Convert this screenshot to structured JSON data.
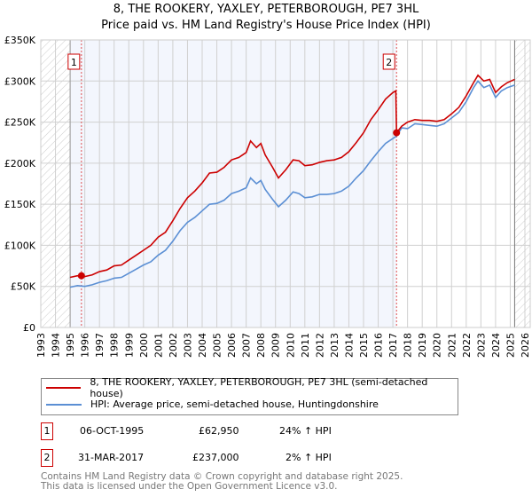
{
  "title": {
    "line1": "8, THE ROOKERY, YAXLEY, PETERBOROUGH, PE7 3HL",
    "line2": "Price paid vs. HM Land Registry's House Price Index (HPI)"
  },
  "chart_data": {
    "type": "line",
    "xlim": [
      1993,
      2026
    ],
    "ylim": [
      0,
      350000
    ],
    "yticks": [
      {
        "v": 0,
        "label": "£0"
      },
      {
        "v": 50000,
        "label": "£50K"
      },
      {
        "v": 100000,
        "label": "£100K"
      },
      {
        "v": 150000,
        "label": "£150K"
      },
      {
        "v": 200000,
        "label": "£200K"
      },
      {
        "v": 250000,
        "label": "£250K"
      },
      {
        "v": 300000,
        "label": "£300K"
      },
      {
        "v": 350000,
        "label": "£350K"
      }
    ],
    "xticks": [
      "1993",
      "1994",
      "1995",
      "1996",
      "1997",
      "1998",
      "1999",
      "2000",
      "2001",
      "2002",
      "2003",
      "2004",
      "2005",
      "2006",
      "2007",
      "2008",
      "2009",
      "2010",
      "2011",
      "2012",
      "2013",
      "2014",
      "2015",
      "2016",
      "2017",
      "2018",
      "2019",
      "2020",
      "2021",
      "2022",
      "2023",
      "2024",
      "2025",
      "2026"
    ],
    "series": [
      {
        "name": "8, THE ROOKERY, YAXLEY, PETERBOROUGH, PE7 3HL (semi-detached house)",
        "color": "#cc0000",
        "x": [
          1995,
          1995.5,
          1996,
          1996.5,
          1997,
          1997.5,
          1998,
          1998.5,
          1999,
          1999.5,
          2000,
          2000.5,
          2001,
          2001.5,
          2002,
          2002.5,
          2003,
          2003.5,
          2004,
          2004.5,
          2005,
          2005.5,
          2006,
          2006.5,
          2007,
          2007.3,
          2007.7,
          2008,
          2008.3,
          2008.8,
          2009.2,
          2009.7,
          2010.2,
          2010.6,
          2011,
          2011.5,
          2012,
          2012.5,
          2013,
          2013.5,
          2014,
          2014.5,
          2015,
          2015.5,
          2016,
          2016.5,
          2017,
          2017.2,
          2017.25,
          2017.6,
          2018,
          2018.5,
          2019,
          2019.5,
          2020,
          2020.5,
          2021,
          2021.5,
          2022,
          2022.5,
          2022.8,
          2023.2,
          2023.6,
          2024,
          2024.4,
          2024.8,
          2025.3
        ],
        "y": [
          61000,
          63000,
          62000,
          64000,
          68000,
          70000,
          75000,
          76000,
          82000,
          88000,
          94000,
          100000,
          110000,
          116000,
          130000,
          145000,
          158000,
          166000,
          176000,
          188000,
          189000,
          195000,
          204000,
          207000,
          213000,
          227000,
          219000,
          224000,
          210000,
          195000,
          182000,
          192000,
          204000,
          203000,
          197000,
          198000,
          201000,
          203000,
          204000,
          207000,
          214000,
          225000,
          237000,
          253000,
          265000,
          278000,
          286000,
          288000,
          237000,
          245000,
          250000,
          253000,
          252000,
          252000,
          251000,
          253000,
          260000,
          268000,
          282000,
          298000,
          307000,
          300000,
          302000,
          286000,
          293000,
          298000,
          302000
        ]
      },
      {
        "name": "HPI: Average price, semi-detached house, Huntingdonshire",
        "color": "#5b8fd4",
        "x": [
          1995,
          1995.5,
          1996,
          1996.5,
          1997,
          1997.5,
          1998,
          1998.5,
          1999,
          1999.5,
          2000,
          2000.5,
          2001,
          2001.5,
          2002,
          2002.5,
          2003,
          2003.5,
          2004,
          2004.5,
          2005,
          2005.5,
          2006,
          2006.5,
          2007,
          2007.3,
          2007.7,
          2008,
          2008.3,
          2008.8,
          2009.2,
          2009.7,
          2010.2,
          2010.6,
          2011,
          2011.5,
          2012,
          2012.5,
          2013,
          2013.5,
          2014,
          2014.5,
          2015,
          2015.5,
          2016,
          2016.5,
          2017,
          2017.25,
          2017.6,
          2018,
          2018.5,
          2019,
          2019.5,
          2020,
          2020.5,
          2021,
          2021.5,
          2022,
          2022.5,
          2022.8,
          2023.2,
          2023.6,
          2024,
          2024.4,
          2024.8,
          2025.3
        ],
        "y": [
          49000,
          51000,
          50000,
          52000,
          55000,
          57000,
          60000,
          61000,
          66000,
          71000,
          76000,
          80000,
          88000,
          94000,
          105000,
          118000,
          128000,
          134000,
          142000,
          150000,
          151000,
          155000,
          163000,
          166000,
          170000,
          182000,
          175000,
          179000,
          168000,
          156000,
          147000,
          155000,
          165000,
          163000,
          158000,
          159000,
          162000,
          162000,
          163000,
          166000,
          172000,
          182000,
          191000,
          203000,
          214000,
          224000,
          230000,
          233000,
          243000,
          242000,
          248000,
          247000,
          246000,
          245000,
          248000,
          255000,
          262000,
          275000,
          292000,
          300000,
          292000,
          295000,
          280000,
          288000,
          292000,
          295000
        ]
      }
    ],
    "sales": [
      {
        "label": "1",
        "x": 1995.77,
        "y": 62950
      },
      {
        "label": "2",
        "x": 2017.25,
        "y": 237000
      }
    ]
  },
  "legend": {
    "items": [
      "8, THE ROOKERY, YAXLEY, PETERBOROUGH, PE7 3HL (semi-detached house)",
      "HPI: Average price, semi-detached house, Huntingdonshire"
    ]
  },
  "transactions": [
    {
      "num": "1",
      "date": "06-OCT-1995",
      "price": "£62,950",
      "hpi": "24% ↑ HPI"
    },
    {
      "num": "2",
      "date": "31-MAR-2017",
      "price": "£237,000",
      "hpi": "2% ↑ HPI"
    }
  ],
  "footer": {
    "line1": "Contains HM Land Registry data © Crown copyright and database right 2025.",
    "line2": "This data is licensed under the Open Government Licence v3.0."
  }
}
